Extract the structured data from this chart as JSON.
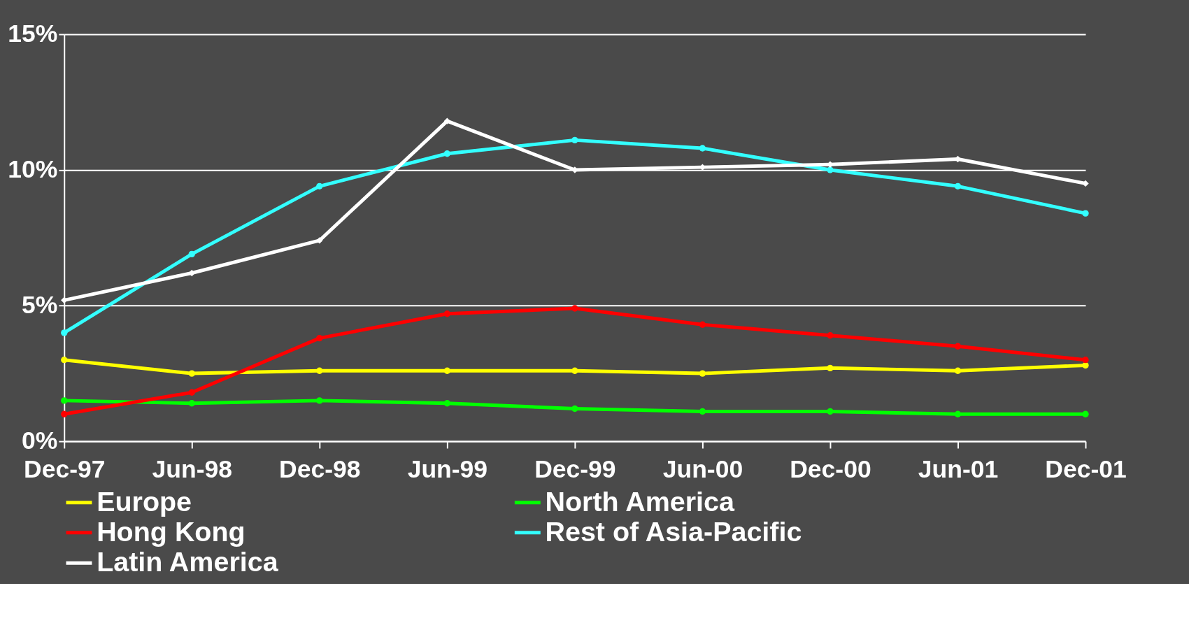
{
  "chart_data": {
    "type": "line",
    "categories": [
      "Dec-97",
      "Jun-98",
      "Dec-98",
      "Jun-99",
      "Dec-99",
      "Jun-00",
      "Dec-00",
      "Jun-01",
      "Dec-01"
    ],
    "series": [
      {
        "name": "Europe",
        "color": "#ffff00",
        "marker": "circle",
        "values": [
          3.0,
          2.5,
          2.6,
          2.6,
          2.6,
          2.5,
          2.7,
          2.6,
          2.8
        ]
      },
      {
        "name": "North America",
        "color": "#00ff00",
        "marker": "circle",
        "values": [
          1.5,
          1.4,
          1.5,
          1.4,
          1.2,
          1.1,
          1.1,
          1.0,
          1.0
        ]
      },
      {
        "name": "Hong Kong",
        "color": "#ff0000",
        "marker": "circle",
        "values": [
          1.0,
          1.8,
          3.8,
          4.7,
          4.9,
          4.3,
          3.9,
          3.5,
          3.0
        ]
      },
      {
        "name": "Rest of Asia-Pacific",
        "color": "#33ffff",
        "marker": "circle",
        "values": [
          4.0,
          6.9,
          9.4,
          10.6,
          11.1,
          10.8,
          10.0,
          9.4,
          8.4
        ]
      },
      {
        "name": "Latin America",
        "color": "#ffffff",
        "marker": "diamond",
        "values": [
          5.2,
          6.2,
          7.4,
          11.8,
          10.0,
          10.1,
          10.2,
          10.4,
          9.5
        ]
      }
    ],
    "ylim": [
      0,
      15
    ],
    "yticks": [
      {
        "value": 0,
        "label": "0%"
      },
      {
        "value": 5,
        "label": "5%"
      },
      {
        "value": 10,
        "label": "10%"
      },
      {
        "value": 15,
        "label": "15%"
      }
    ],
    "grid": "y",
    "legend": "bottom",
    "line_style": "solid"
  }
}
